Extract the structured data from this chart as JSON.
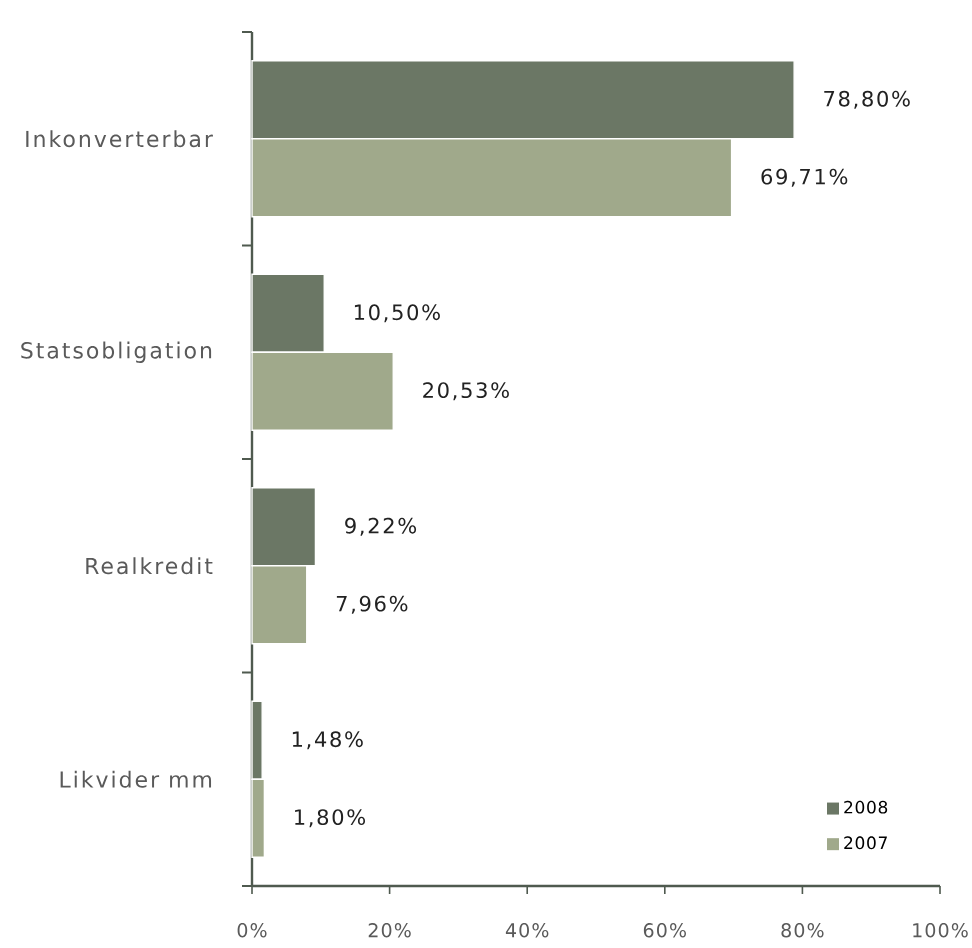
{
  "chart_data": {
    "type": "bar",
    "orientation": "horizontal",
    "categories": [
      "Inkonverterbar",
      "Statsobligation",
      "Realkredit",
      "Likvider mm"
    ],
    "series": [
      {
        "name": "2008",
        "color": "#6b7765",
        "values": [
          78.8,
          10.5,
          9.22,
          1.48
        ],
        "value_labels": [
          "78,80%",
          "10,50%",
          "9,22%",
          "1,48%"
        ]
      },
      {
        "name": "2007",
        "color": "#a0a98b",
        "values": [
          69.71,
          20.53,
          7.96,
          1.8
        ],
        "value_labels": [
          "69,71%",
          "20,53%",
          "7,96%",
          "1,80%"
        ]
      }
    ],
    "xlim": [
      0,
      100
    ],
    "xticks": [
      {
        "value": 0,
        "label": "0%"
      },
      {
        "value": 20,
        "label": "20%"
      },
      {
        "value": 40,
        "label": "40%"
      },
      {
        "value": 60,
        "label": "60%"
      },
      {
        "value": 80,
        "label": "80%"
      },
      {
        "value": 100,
        "label": "100%"
      }
    ],
    "legend": "bottom right"
  }
}
